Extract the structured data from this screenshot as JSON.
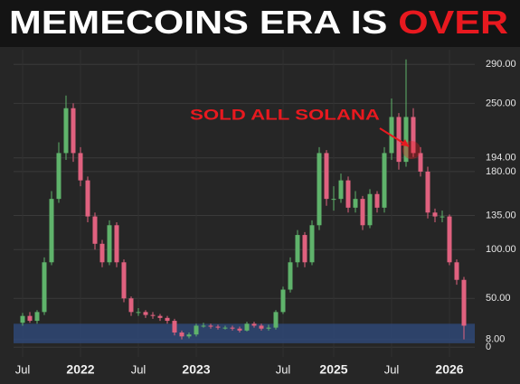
{
  "chart_data": {
    "type": "candlestick",
    "title": "MEMECOINS ERA IS",
    "title_highlight": "OVER",
    "annotation": "SOLD ALL SOLANA",
    "categories": [
      "Jul",
      null,
      null,
      null,
      null,
      null,
      null,
      null,
      "2022",
      null,
      null,
      null,
      null,
      null,
      null,
      null,
      "Jul",
      null,
      null,
      null,
      null,
      null,
      null,
      null,
      "2023",
      null,
      null,
      null,
      null,
      null,
      null,
      null,
      null,
      null,
      null,
      null,
      "Jul",
      null,
      null,
      null,
      null,
      null,
      null,
      "2025",
      null,
      null,
      null,
      null,
      null,
      null,
      null,
      "Jul",
      null,
      null,
      null,
      null,
      null,
      null,
      null,
      "2026",
      null,
      null
    ],
    "open": [
      25,
      32,
      27,
      36,
      87,
      152,
      199,
      245,
      199,
      171,
      134,
      106,
      87,
      125,
      87,
      50,
      36,
      36,
      33,
      32,
      30,
      27,
      15,
      11,
      13,
      22,
      22,
      21,
      20,
      20,
      19,
      17,
      24,
      22,
      19,
      20,
      36,
      59,
      87,
      115,
      87,
      125,
      199,
      152,
      152,
      171,
      143,
      152,
      125,
      157,
      143,
      199,
      236,
      190,
      236,
      199,
      180,
      138,
      134,
      134,
      87,
      69
    ],
    "high": [
      35,
      36,
      38,
      92,
      160,
      210,
      258,
      250,
      205,
      175,
      138,
      110,
      130,
      128,
      90,
      52,
      40,
      38,
      36,
      34,
      32,
      29,
      17,
      15,
      24,
      25,
      24,
      23,
      22,
      22,
      21,
      26,
      26,
      24,
      23,
      38,
      62,
      92,
      120,
      118,
      130,
      205,
      202,
      165,
      178,
      175,
      160,
      155,
      162,
      160,
      205,
      255,
      240,
      295,
      245,
      205,
      185,
      142,
      140,
      136,
      90,
      72
    ],
    "low": [
      22,
      25,
      24,
      33,
      84,
      148,
      192,
      190,
      165,
      128,
      100,
      82,
      84,
      82,
      46,
      32,
      32,
      30,
      29,
      27,
      24,
      12,
      8,
      9,
      11,
      20,
      19,
      18,
      18,
      17,
      15,
      16,
      20,
      17,
      17,
      18,
      34,
      56,
      82,
      82,
      84,
      120,
      145,
      140,
      148,
      138,
      138,
      120,
      122,
      138,
      138,
      192,
      182,
      185,
      195,
      175,
      132,
      128,
      128,
      84,
      64,
      8
    ],
    "close": [
      32,
      27,
      36,
      87,
      152,
      199,
      245,
      199,
      171,
      134,
      106,
      87,
      125,
      87,
      50,
      36,
      36,
      33,
      32,
      30,
      27,
      15,
      11,
      13,
      22,
      22,
      21,
      20,
      20,
      19,
      17,
      24,
      22,
      19,
      20,
      36,
      59,
      87,
      115,
      87,
      125,
      199,
      152,
      152,
      171,
      143,
      152,
      125,
      157,
      143,
      199,
      236,
      190,
      236,
      199,
      180,
      138,
      134,
      134,
      87,
      69,
      22
    ],
    "up_color": "#5fb36b",
    "down_color": "#e0617f",
    "highlight_band": [
      4,
      24
    ],
    "highlight_color": "#2f4a7a",
    "annotation_color": "#e8191f",
    "ylim": [
      -10,
      305
    ],
    "yticks": [
      0,
      {
        "value": 8,
        "label": "8.00"
      },
      {
        "value": 50,
        "label": "50.00"
      },
      {
        "value": 100,
        "label": "100.00"
      },
      {
        "value": 135,
        "label": "135.00"
      },
      {
        "value": 180,
        "label": "180.00"
      },
      {
        "value": 194,
        "label": "194.00"
      },
      {
        "value": 250,
        "label": "250.00"
      },
      {
        "value": 290,
        "label": "290.00"
      }
    ],
    "grid": true
  }
}
